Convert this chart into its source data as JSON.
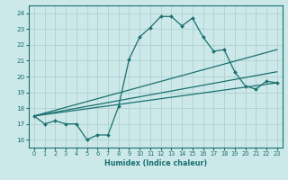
{
  "xlabel": "Humidex (Indice chaleur)",
  "xlim": [
    -0.5,
    23.5
  ],
  "ylim": [
    15.5,
    24.5
  ],
  "xticks": [
    0,
    1,
    2,
    3,
    4,
    5,
    6,
    7,
    8,
    9,
    10,
    11,
    12,
    13,
    14,
    15,
    16,
    17,
    18,
    19,
    20,
    21,
    22,
    23
  ],
  "yticks": [
    16,
    17,
    18,
    19,
    20,
    21,
    22,
    23,
    24
  ],
  "bg_color": "#cce8e8",
  "grid_color": "#aacccc",
  "line_color": "#1a7070",
  "lines": [
    {
      "x": [
        0,
        1,
        2,
        3,
        4,
        5,
        6,
        7,
        8,
        9,
        10,
        11,
        12,
        13,
        14,
        15,
        16,
        17,
        18,
        19,
        20,
        21,
        22,
        23
      ],
      "y": [
        17.5,
        17.0,
        17.2,
        17.0,
        17.0,
        16.0,
        16.3,
        16.3,
        18.1,
        21.1,
        22.5,
        23.1,
        23.8,
        23.8,
        23.2,
        23.7,
        22.5,
        21.6,
        21.7,
        20.3,
        19.4,
        19.2,
        19.7,
        19.6
      ]
    },
    {
      "x": [
        0,
        23
      ],
      "y": [
        17.5,
        21.7
      ]
    },
    {
      "x": [
        0,
        23
      ],
      "y": [
        17.5,
        20.3
      ]
    },
    {
      "x": [
        0,
        23
      ],
      "y": [
        17.5,
        19.6
      ]
    }
  ]
}
